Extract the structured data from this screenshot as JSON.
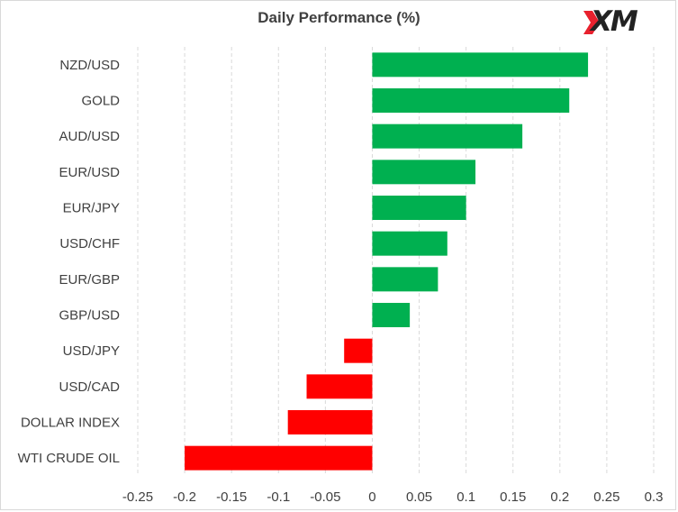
{
  "chart_data": {
    "type": "bar",
    "orientation": "horizontal",
    "title": "Daily Performance  (%)",
    "categories": [
      "NZD/USD",
      "GOLD",
      "AUD/USD",
      "EUR/USD",
      "EUR/JPY",
      "USD/CHF",
      "EUR/GBP",
      "GBP/USD",
      "USD/JPY",
      "USD/CAD",
      "DOLLAR INDEX",
      "WTI CRUDE OIL"
    ],
    "values": [
      0.23,
      0.21,
      0.16,
      0.11,
      0.1,
      0.08,
      0.07,
      0.04,
      -0.03,
      -0.07,
      -0.09,
      -0.2
    ],
    "xlim": [
      -0.25,
      0.3
    ],
    "xticks": [
      "-0.25",
      "-0.2",
      "-0.15",
      "-0.1",
      "-0.05",
      "0",
      "0.05",
      "0.1",
      "0.15",
      "0.2",
      "0.25",
      "0.3"
    ],
    "grid": "vertical-dashed",
    "colors": {
      "positive": "#00b050",
      "negative": "#ff0000",
      "grid": "#d9d9d9",
      "text": "#404040"
    }
  },
  "logo": {
    "text": "XM",
    "accent": "#e8212e"
  }
}
